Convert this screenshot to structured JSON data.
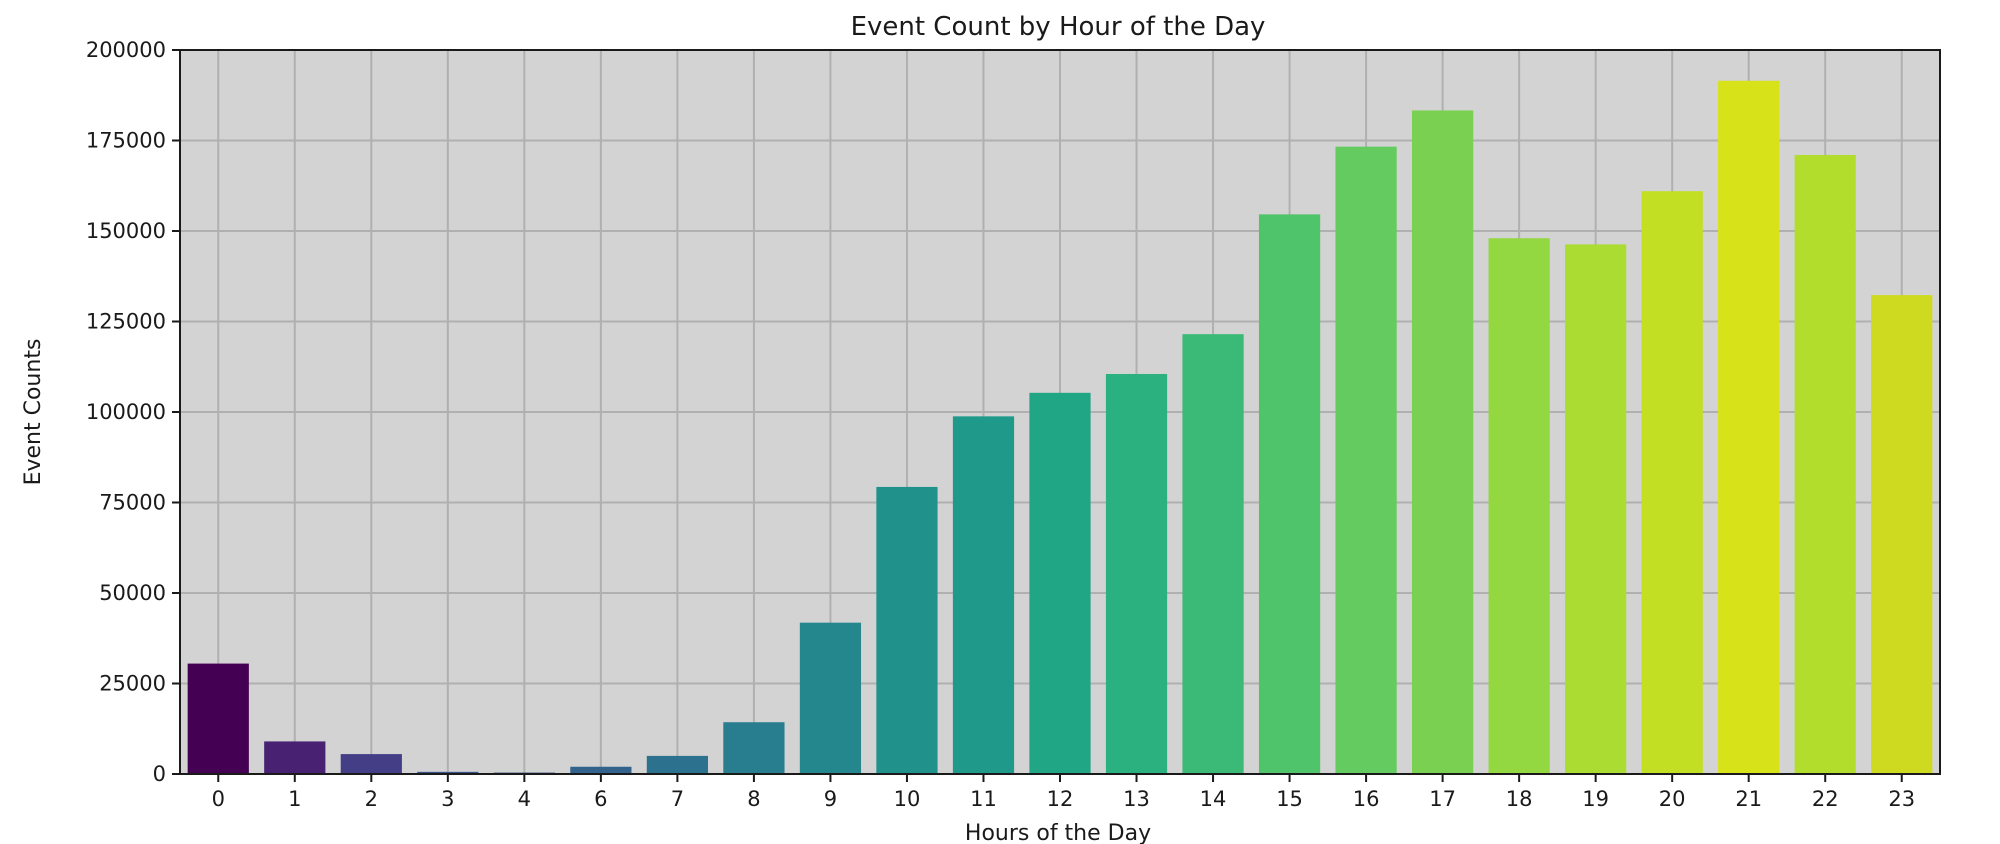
{
  "chart_data": {
    "type": "bar",
    "title": "Event Count by Hour of the Day",
    "xlabel": "Hours of the Day",
    "ylabel": "Event Counts",
    "categories": [
      "0",
      "1",
      "2",
      "3",
      "4",
      "6",
      "7",
      "8",
      "9",
      "10",
      "11",
      "12",
      "13",
      "14",
      "15",
      "16",
      "17",
      "18",
      "19",
      "20",
      "21",
      "22",
      "23"
    ],
    "values": [
      30500,
      9000,
      5500,
      600,
      400,
      2000,
      5000,
      14300,
      41800,
      79300,
      98800,
      105300,
      110500,
      121500,
      154600,
      173300,
      183300,
      148000,
      146300,
      161000,
      191500,
      171000,
      132300
    ],
    "colors": [
      "#440154",
      "#482173",
      "#433e85",
      "#3b528b",
      "#38598c",
      "#33638d",
      "#2c728e",
      "#287d8e",
      "#24878e",
      "#21918c",
      "#1f9a8a",
      "#21a685",
      "#2bb07f",
      "#3aba76",
      "#50c46a",
      "#63cb5f",
      "#7ad151",
      "#93d741",
      "#abdc32",
      "#c2df23",
      "#d8e219",
      "#b2dd2d",
      "#cdda1f"
    ],
    "yticks": [
      "0",
      "25000",
      "50000",
      "75000",
      "100000",
      "125000",
      "150000",
      "175000",
      "200000"
    ],
    "ylim": [
      0,
      200000
    ],
    "grid": true,
    "plot_background": "#d3d3d3"
  }
}
